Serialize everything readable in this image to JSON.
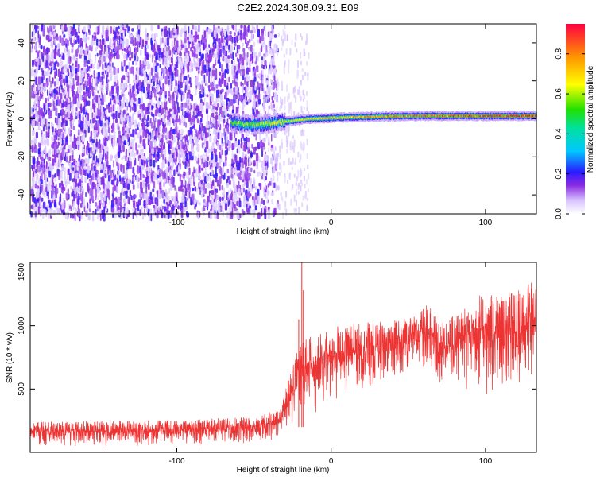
{
  "title": "C2E2.2024.308.09.31.E09",
  "chart_data": [
    {
      "type": "heatmap",
      "xlabel": "Height of straight line (km)",
      "ylabel": "Frequency (Hz)",
      "xlim": [
        -195,
        133
      ],
      "ylim": [
        -50,
        50
      ],
      "x_ticks": [
        -100,
        0,
        100
      ],
      "y_ticks": [
        -40,
        -20,
        0,
        20,
        40
      ],
      "colorbar": {
        "label": "Normalized spectral amplitude",
        "range": [
          0.0,
          0.95
        ],
        "ticks": [
          0.0,
          0.2,
          0.4,
          0.6,
          0.8
        ]
      },
      "features": [
        {
          "name": "broadband noise",
          "x_range": [
            -195,
            -35
          ],
          "y_range": [
            -50,
            50
          ],
          "amplitude": 0.12
        },
        {
          "name": "transition noise",
          "x_range": [
            -45,
            -15
          ],
          "y_range": [
            -50,
            50
          ],
          "amplitude": 0.06
        },
        {
          "name": "tone",
          "points": [
            [
              -65,
              -2
            ],
            [
              -55,
              -3
            ],
            [
              -45,
              -3
            ],
            [
              -35,
              -2
            ],
            [
              -25,
              -1
            ],
            [
              -15,
              0
            ],
            [
              0,
              0.5
            ],
            [
              20,
              1
            ],
            [
              50,
              1.5
            ],
            [
              80,
              1.5
            ],
            [
              100,
              1.5
            ],
            [
              133,
              1.5
            ]
          ],
          "amplitude_start": 0.5,
          "amplitude_end": 0.9
        }
      ]
    },
    {
      "type": "line",
      "xlabel": "Height of straight line (km)",
      "ylabel": "SNR (10 * v/v)",
      "xlim": [
        -195,
        133
      ],
      "ylim": [
        0,
        1500
      ],
      "x_ticks": [
        -100,
        0,
        100
      ],
      "y_ticks": [
        500,
        1000,
        1500
      ],
      "color": "#ee3333",
      "envelope": {
        "x": [
          -195,
          -100,
          -50,
          -33,
          -30,
          -25,
          -20,
          -10,
          0,
          20,
          40,
          55,
          62,
          70,
          80,
          90,
          100,
          110,
          120,
          133
        ],
        "lower": [
          40,
          40,
          60,
          100,
          120,
          160,
          250,
          280,
          380,
          450,
          550,
          650,
          560,
          520,
          480,
          450,
          420,
          400,
          450,
          600
        ],
        "upper": [
          250,
          260,
          290,
          350,
          520,
          700,
          900,
          950,
          1000,
          1050,
          1050,
          1100,
          1200,
          1050,
          1100,
          1200,
          1300,
          1250,
          1350,
          1400
        ]
      },
      "spikes": [
        {
          "x": -19,
          "y": 1500
        },
        {
          "x": -18,
          "y": 1280
        },
        {
          "x": -21,
          "y": 1050
        }
      ]
    }
  ]
}
